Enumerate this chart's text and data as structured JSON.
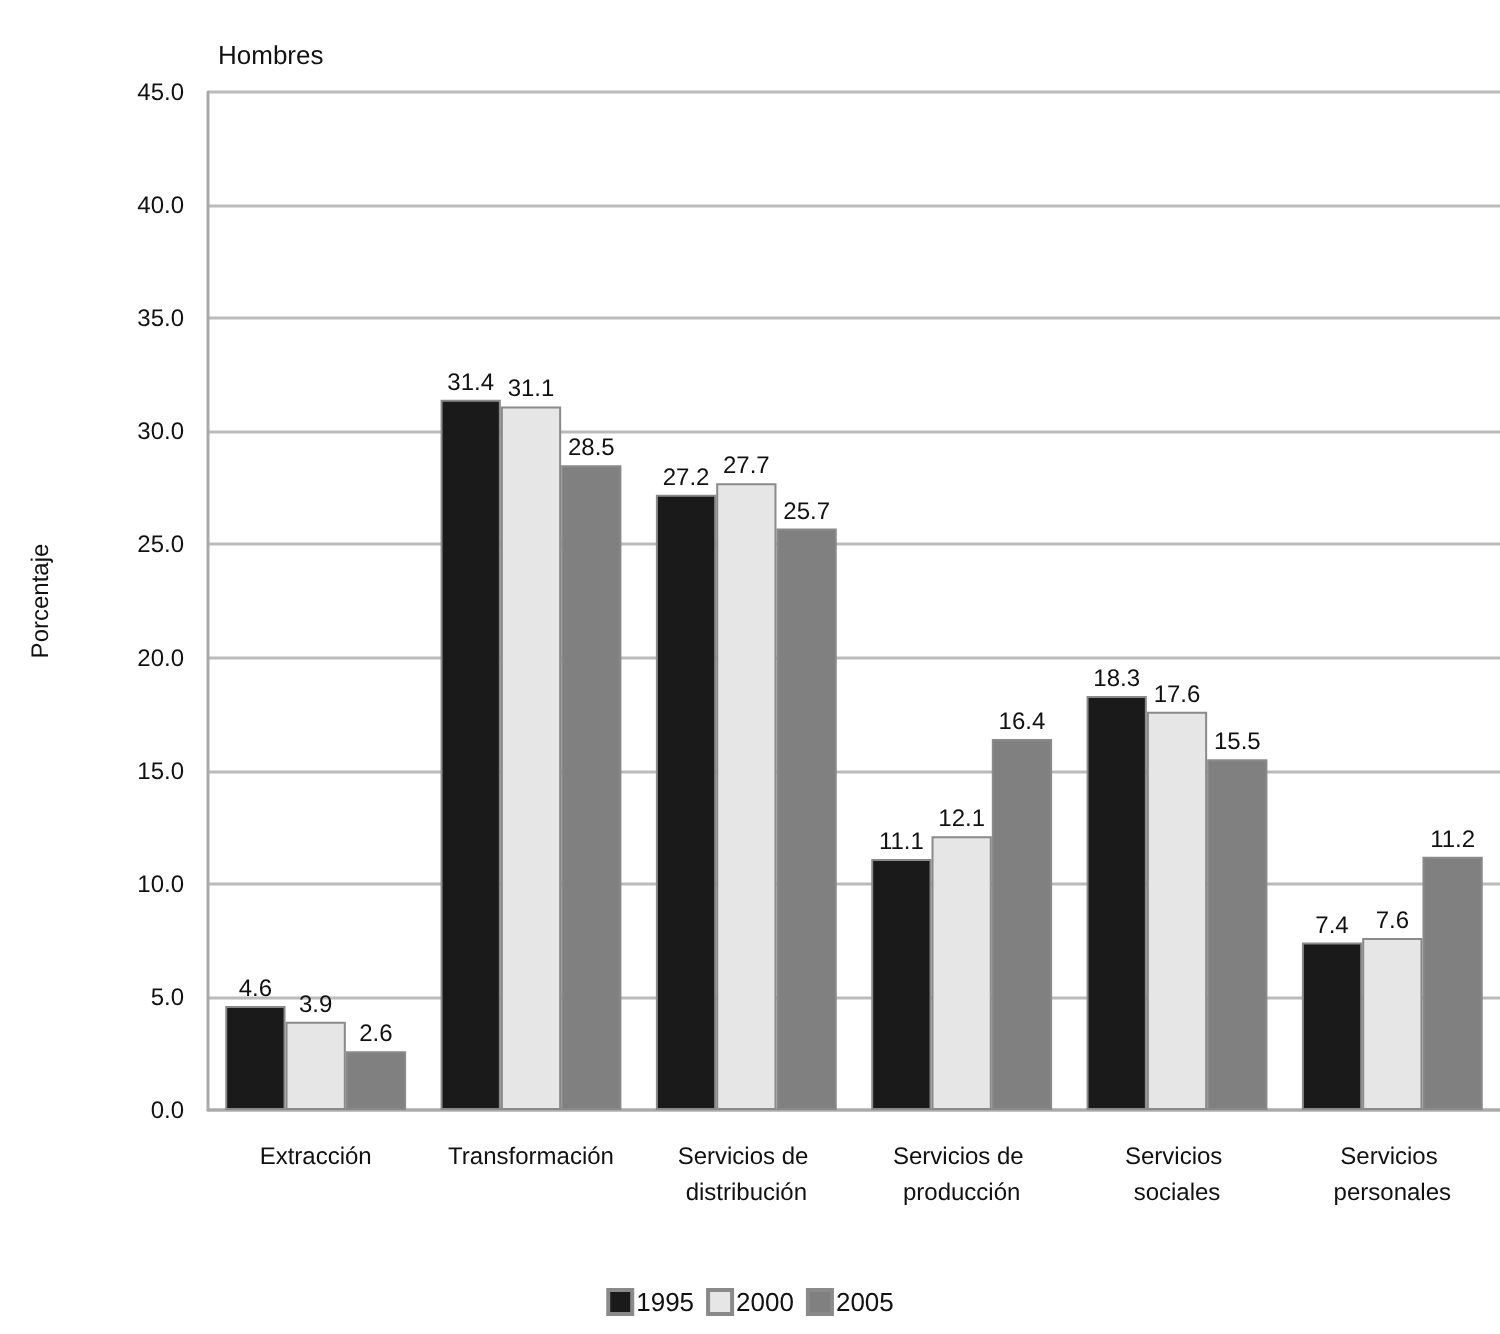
{
  "chart_data": {
    "type": "bar",
    "title": "Hombres",
    "ylabel": "Porcentaje",
    "categories": [
      "Extracción",
      "Transformación",
      "Servicios de distribución",
      "Servicios de producción",
      "Servicios sociales",
      "Servicios personales"
    ],
    "series": [
      {
        "name": "1995",
        "color": "#1a1a1a",
        "values": [
          4.6,
          31.4,
          27.2,
          11.1,
          18.3,
          7.4
        ]
      },
      {
        "name": "2000",
        "color": "#e6e6e6",
        "values": [
          3.9,
          31.1,
          27.7,
          12.1,
          17.6,
          7.6
        ]
      },
      {
        "name": "2005",
        "color": "#808080",
        "values": [
          2.6,
          28.5,
          25.7,
          16.4,
          15.5,
          11.2
        ]
      }
    ],
    "ylim": [
      0,
      45
    ],
    "yticks": [
      {
        "value": 0,
        "label": "0.0"
      },
      {
        "value": 5,
        "label": "5.0"
      },
      {
        "value": 10,
        "label": "10.0"
      },
      {
        "value": 15,
        "label": "15.0"
      },
      {
        "value": 20,
        "label": "20.0"
      },
      {
        "value": 25,
        "label": "25.0"
      },
      {
        "value": 30,
        "label": "30.0"
      },
      {
        "value": 35,
        "label": "35.0"
      },
      {
        "value": 40,
        "label": "40.0"
      },
      {
        "value": 45,
        "label": "45.0"
      }
    ],
    "grid": "y",
    "legend": "bottom",
    "data_labels": true
  }
}
